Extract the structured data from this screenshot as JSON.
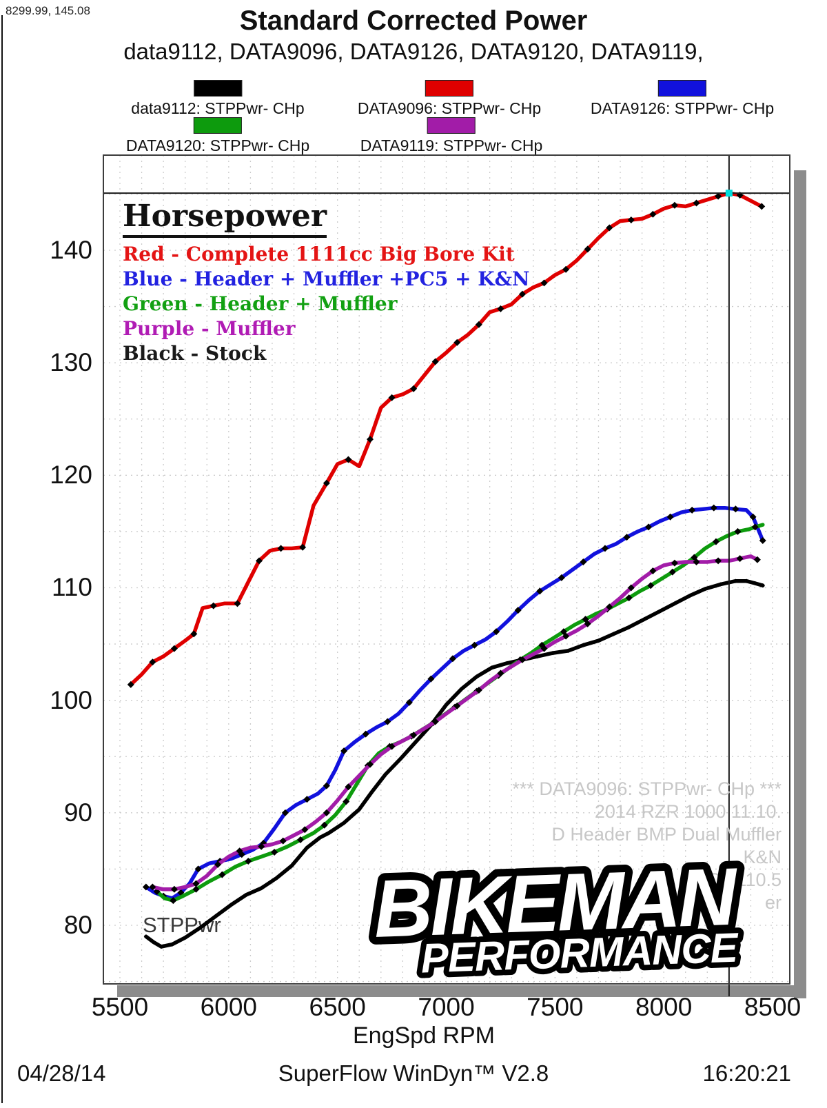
{
  "readout": "8299.99, 145.08",
  "title": "Standard Corrected Power",
  "subtitle": "data9112, DATA9096, DATA9126, DATA9120, DATA9119,",
  "legend": {
    "rows": [
      [
        {
          "label": "data9112: STPPwr- CHp",
          "color": "#000000"
        },
        {
          "label": "DATA9096: STPPwr- CHp",
          "color": "#df0000"
        },
        {
          "label": "DATA9126: STPPwr- CHp",
          "color": "#1111dd"
        }
      ],
      [
        {
          "label": "DATA9120: STPPwr- CHp",
          "color": "#0d9b0d"
        },
        {
          "label": "DATA9119: STPPwr- CHp",
          "color": "#a21ca8"
        }
      ]
    ]
  },
  "annotation": {
    "heading": "Horsepower",
    "items": [
      {
        "text": "Red - Complete 1111cc Big Bore Kit",
        "color": "#e41414"
      },
      {
        "text": "Blue - Header + Muffler +PC5 + K&N",
        "color": "#2222e0"
      },
      {
        "text": "Green - Header + Muffler",
        "color": "#12a012"
      },
      {
        "text": "Purple - Muffler",
        "color": "#b01cb4"
      },
      {
        "text": "Black - Stock",
        "color": "#1a1a1a"
      }
    ]
  },
  "plot_label": "STPPwr",
  "watermark": {
    "color": "#c7c7c7",
    "lines": [
      "*** DATA9096: STPPwr- CHp    ***",
      "2014 RZR 1000 11.10.",
      "D Header BMP Dual Muffler",
      "K&N",
      "PC5  110.5",
      "er"
    ]
  },
  "logo": {
    "line1": "BIKEMAN",
    "line2": "PERFORMANCE"
  },
  "footer": {
    "date": "04/28/14",
    "app": "SuperFlow WinDyn™ V2.8",
    "time": "16:20:21"
  },
  "chart_data": {
    "type": "line",
    "title": "Standard Corrected Power",
    "xlabel": "EngSpd  RPM",
    "ylabel": "STPPwr",
    "xlim": [
      5420,
      8580
    ],
    "ylim": [
      74.8,
      148.4
    ],
    "x_ticks": [
      5500,
      6000,
      6500,
      7000,
      7500,
      8000,
      8500
    ],
    "y_ticks": [
      80,
      90,
      100,
      110,
      120,
      130,
      140
    ],
    "grid": {
      "x_minor_step": 100,
      "y_minor_step": 5,
      "style": "dashed"
    },
    "crosshair": {
      "rpm": 8299.99,
      "hp": 145.08,
      "marker_color": "#00dddd"
    },
    "series": [
      {
        "name": "data9112: STPPwr- CHp",
        "config": "Stock",
        "color": "#000000",
        "points": [
          [
            5620,
            79.0
          ],
          [
            5655,
            78.5
          ],
          [
            5690,
            78.1
          ],
          [
            5740,
            78.3
          ],
          [
            5800,
            78.9
          ],
          [
            5870,
            79.8
          ],
          [
            5940,
            80.8
          ],
          [
            6010,
            81.8
          ],
          [
            6080,
            82.7
          ],
          [
            6150,
            83.3
          ],
          [
            6220,
            84.2
          ],
          [
            6290,
            85.3
          ],
          [
            6360,
            86.9
          ],
          [
            6420,
            87.8
          ],
          [
            6460,
            88.2
          ],
          [
            6530,
            89.1
          ],
          [
            6600,
            90.3
          ],
          [
            6660,
            91.9
          ],
          [
            6720,
            93.4
          ],
          [
            6790,
            94.8
          ],
          [
            6860,
            96.3
          ],
          [
            6930,
            97.8
          ],
          [
            7000,
            99.6
          ],
          [
            7070,
            101.0
          ],
          [
            7140,
            102.1
          ],
          [
            7210,
            102.9
          ],
          [
            7280,
            103.3
          ],
          [
            7350,
            103.6
          ],
          [
            7420,
            103.9
          ],
          [
            7490,
            104.2
          ],
          [
            7560,
            104.4
          ],
          [
            7630,
            104.9
          ],
          [
            7700,
            105.3
          ],
          [
            7770,
            105.9
          ],
          [
            7840,
            106.5
          ],
          [
            7910,
            107.2
          ],
          [
            7980,
            107.9
          ],
          [
            8050,
            108.6
          ],
          [
            8120,
            109.3
          ],
          [
            8190,
            109.9
          ],
          [
            8260,
            110.3
          ],
          [
            8330,
            110.6
          ],
          [
            8380,
            110.6
          ],
          [
            8420,
            110.4
          ],
          [
            8455,
            110.2
          ]
        ]
      },
      {
        "name": "DATA9126: STPPwr- CHp",
        "config": "Header + Muffler +PC5 + K&N",
        "color": "#1111dd",
        "points": [
          [
            5620,
            83.4
          ],
          [
            5660,
            82.9
          ],
          [
            5700,
            82.6
          ],
          [
            5740,
            82.4
          ],
          [
            5780,
            82.9
          ],
          [
            5820,
            83.7
          ],
          [
            5860,
            85.0
          ],
          [
            5910,
            85.5
          ],
          [
            5960,
            85.7
          ],
          [
            6010,
            85.9
          ],
          [
            6060,
            86.3
          ],
          [
            6110,
            86.7
          ],
          [
            6160,
            87.3
          ],
          [
            6210,
            88.6
          ],
          [
            6260,
            90.0
          ],
          [
            6310,
            90.7
          ],
          [
            6360,
            91.2
          ],
          [
            6410,
            91.7
          ],
          [
            6450,
            92.4
          ],
          [
            6490,
            93.8
          ],
          [
            6530,
            95.5
          ],
          [
            6580,
            96.3
          ],
          [
            6630,
            97.0
          ],
          [
            6680,
            97.6
          ],
          [
            6730,
            98.1
          ],
          [
            6780,
            98.8
          ],
          [
            6830,
            99.8
          ],
          [
            6880,
            100.9
          ],
          [
            6930,
            101.9
          ],
          [
            6980,
            102.8
          ],
          [
            7030,
            103.7
          ],
          [
            7080,
            104.4
          ],
          [
            7130,
            104.9
          ],
          [
            7180,
            105.4
          ],
          [
            7230,
            106.1
          ],
          [
            7280,
            107.0
          ],
          [
            7330,
            108.0
          ],
          [
            7380,
            108.9
          ],
          [
            7430,
            109.7
          ],
          [
            7480,
            110.3
          ],
          [
            7530,
            110.9
          ],
          [
            7580,
            111.6
          ],
          [
            7630,
            112.3
          ],
          [
            7680,
            113.0
          ],
          [
            7730,
            113.5
          ],
          [
            7780,
            113.9
          ],
          [
            7830,
            114.5
          ],
          [
            7880,
            115.0
          ],
          [
            7930,
            115.4
          ],
          [
            7980,
            115.9
          ],
          [
            8030,
            116.3
          ],
          [
            8080,
            116.7
          ],
          [
            8130,
            116.9
          ],
          [
            8180,
            117.0
          ],
          [
            8230,
            117.1
          ],
          [
            8280,
            117.1
          ],
          [
            8330,
            117.0
          ],
          [
            8380,
            116.9
          ],
          [
            8410,
            116.3
          ],
          [
            8440,
            114.9
          ],
          [
            8455,
            114.2
          ]
        ]
      },
      {
        "name": "DATA9120: STPPwr- CHp",
        "config": "Header + Muffler",
        "color": "#0d9b0d",
        "points": [
          [
            5670,
            83.0
          ],
          [
            5705,
            82.4
          ],
          [
            5745,
            82.2
          ],
          [
            5790,
            82.6
          ],
          [
            5850,
            83.2
          ],
          [
            5910,
            83.9
          ],
          [
            5970,
            84.5
          ],
          [
            6030,
            85.2
          ],
          [
            6090,
            85.7
          ],
          [
            6150,
            86.1
          ],
          [
            6210,
            86.5
          ],
          [
            6270,
            87.0
          ],
          [
            6330,
            87.6
          ],
          [
            6390,
            88.2
          ],
          [
            6440,
            88.9
          ],
          [
            6490,
            89.8
          ],
          [
            6540,
            91.0
          ],
          [
            6590,
            92.6
          ],
          [
            6640,
            94.2
          ],
          [
            6690,
            95.3
          ],
          [
            6740,
            95.9
          ],
          [
            6790,
            96.3
          ],
          [
            6840,
            96.8
          ],
          [
            6890,
            97.4
          ],
          [
            6940,
            98.0
          ],
          [
            6990,
            98.7
          ],
          [
            7040,
            99.4
          ],
          [
            7090,
            100.1
          ],
          [
            7140,
            100.8
          ],
          [
            7190,
            101.5
          ],
          [
            7240,
            102.2
          ],
          [
            7290,
            102.9
          ],
          [
            7340,
            103.6
          ],
          [
            7390,
            104.2
          ],
          [
            7440,
            104.9
          ],
          [
            7490,
            105.5
          ],
          [
            7540,
            106.1
          ],
          [
            7590,
            106.7
          ],
          [
            7640,
            107.2
          ],
          [
            7690,
            107.7
          ],
          [
            7740,
            108.1
          ],
          [
            7790,
            108.6
          ],
          [
            7840,
            109.1
          ],
          [
            7890,
            109.7
          ],
          [
            7940,
            110.2
          ],
          [
            7990,
            110.8
          ],
          [
            8040,
            111.4
          ],
          [
            8090,
            112.0
          ],
          [
            8140,
            112.7
          ],
          [
            8190,
            113.5
          ],
          [
            8240,
            114.1
          ],
          [
            8290,
            114.6
          ],
          [
            8340,
            115.0
          ],
          [
            8390,
            115.2
          ],
          [
            8420,
            115.4
          ],
          [
            8455,
            115.6
          ]
        ]
      },
      {
        "name": "DATA9119: STPPwr- CHp",
        "config": "Muffler",
        "color": "#a21ca8",
        "points": [
          [
            5650,
            83.4
          ],
          [
            5700,
            83.2
          ],
          [
            5750,
            83.2
          ],
          [
            5800,
            83.4
          ],
          [
            5850,
            83.7
          ],
          [
            5900,
            84.4
          ],
          [
            5950,
            85.4
          ],
          [
            6000,
            86.1
          ],
          [
            6050,
            86.6
          ],
          [
            6100,
            86.9
          ],
          [
            6150,
            87.0
          ],
          [
            6200,
            87.2
          ],
          [
            6250,
            87.5
          ],
          [
            6300,
            88.0
          ],
          [
            6350,
            88.5
          ],
          [
            6400,
            89.2
          ],
          [
            6450,
            90.0
          ],
          [
            6500,
            91.1
          ],
          [
            6550,
            92.3
          ],
          [
            6600,
            93.3
          ],
          [
            6650,
            94.3
          ],
          [
            6700,
            95.2
          ],
          [
            6750,
            95.9
          ],
          [
            6800,
            96.4
          ],
          [
            6850,
            96.9
          ],
          [
            6900,
            97.5
          ],
          [
            6950,
            98.1
          ],
          [
            7000,
            98.8
          ],
          [
            7050,
            99.5
          ],
          [
            7100,
            100.2
          ],
          [
            7150,
            100.9
          ],
          [
            7200,
            101.7
          ],
          [
            7250,
            102.4
          ],
          [
            7300,
            103.0
          ],
          [
            7350,
            103.6
          ],
          [
            7400,
            104.1
          ],
          [
            7450,
            104.6
          ],
          [
            7500,
            105.2
          ],
          [
            7550,
            105.7
          ],
          [
            7600,
            106.2
          ],
          [
            7650,
            106.8
          ],
          [
            7700,
            107.5
          ],
          [
            7750,
            108.3
          ],
          [
            7800,
            109.1
          ],
          [
            7850,
            110.0
          ],
          [
            7900,
            110.8
          ],
          [
            7950,
            111.5
          ],
          [
            8000,
            112.0
          ],
          [
            8050,
            112.2
          ],
          [
            8100,
            112.3
          ],
          [
            8150,
            112.3
          ],
          [
            8200,
            112.3
          ],
          [
            8250,
            112.4
          ],
          [
            8300,
            112.4
          ],
          [
            8350,
            112.6
          ],
          [
            8400,
            112.8
          ],
          [
            8430,
            112.5
          ]
        ]
      },
      {
        "name": "DATA9096: STPPwr- CHp",
        "config": "Complete 1111cc Big Bore Kit",
        "color": "#df0000",
        "points": [
          [
            5550,
            101.4
          ],
          [
            5600,
            102.3
          ],
          [
            5650,
            103.4
          ],
          [
            5700,
            103.9
          ],
          [
            5750,
            104.6
          ],
          [
            5800,
            105.3
          ],
          [
            5840,
            105.9
          ],
          [
            5880,
            108.2
          ],
          [
            5930,
            108.4
          ],
          [
            5980,
            108.6
          ],
          [
            6040,
            108.6
          ],
          [
            6090,
            110.5
          ],
          [
            6140,
            112.4
          ],
          [
            6190,
            113.3
          ],
          [
            6240,
            113.5
          ],
          [
            6290,
            113.5
          ],
          [
            6340,
            113.6
          ],
          [
            6390,
            117.3
          ],
          [
            6450,
            119.3
          ],
          [
            6500,
            121.0
          ],
          [
            6550,
            121.4
          ],
          [
            6600,
            120.8
          ],
          [
            6650,
            123.2
          ],
          [
            6700,
            126.0
          ],
          [
            6750,
            126.9
          ],
          [
            6800,
            127.2
          ],
          [
            6850,
            127.7
          ],
          [
            6900,
            128.9
          ],
          [
            6950,
            130.1
          ],
          [
            7000,
            130.9
          ],
          [
            7050,
            131.8
          ],
          [
            7100,
            132.5
          ],
          [
            7150,
            133.4
          ],
          [
            7200,
            134.5
          ],
          [
            7250,
            134.8
          ],
          [
            7300,
            135.2
          ],
          [
            7350,
            136.1
          ],
          [
            7400,
            136.7
          ],
          [
            7450,
            137.1
          ],
          [
            7500,
            137.8
          ],
          [
            7550,
            138.3
          ],
          [
            7600,
            139.1
          ],
          [
            7650,
            140.1
          ],
          [
            7700,
            141.1
          ],
          [
            7750,
            142.0
          ],
          [
            7800,
            142.6
          ],
          [
            7850,
            142.7
          ],
          [
            7900,
            142.8
          ],
          [
            7950,
            143.2
          ],
          [
            8000,
            143.7
          ],
          [
            8050,
            144.0
          ],
          [
            8100,
            143.9
          ],
          [
            8150,
            144.2
          ],
          [
            8200,
            144.5
          ],
          [
            8250,
            144.8
          ],
          [
            8300,
            145.08
          ],
          [
            8350,
            144.9
          ],
          [
            8400,
            144.4
          ],
          [
            8450,
            143.9
          ]
        ]
      }
    ]
  }
}
